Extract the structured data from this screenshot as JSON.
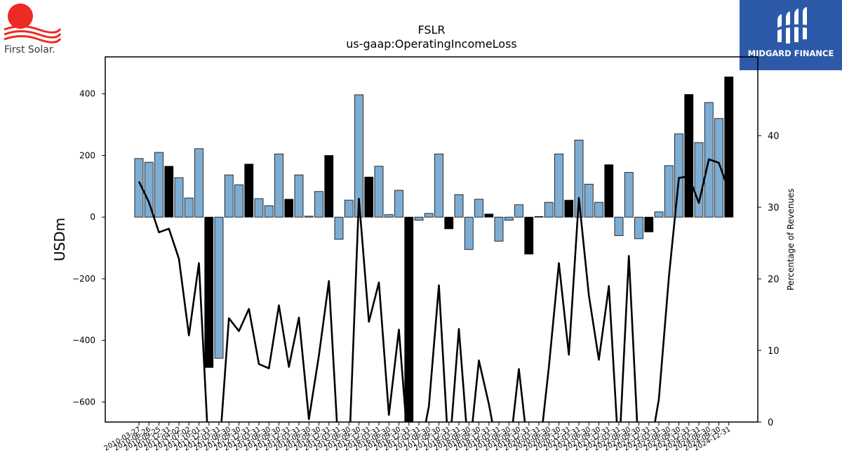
{
  "brand_left": {
    "text": "First Solar."
  },
  "brand_right": {
    "text": "MIDGARD FINANCE"
  },
  "chart_data": {
    "type": "bar",
    "title": "FSLR",
    "subtitle": "us-gaap:OperatingIncomeLoss",
    "ylabel": "USDm",
    "ylabel_right": "Percentage of Revenues",
    "ylim": [
      -665,
      520
    ],
    "ylim_right": [
      0,
      51
    ],
    "yticks": [
      -600,
      -400,
      -200,
      0,
      200,
      400
    ],
    "yticks_right": [
      0,
      10,
      20,
      30,
      40
    ],
    "colors": {
      "quarterly": "#7eadd4",
      "annual": "#000000",
      "line": "#000000"
    },
    "categories": [
      "2010-03-27",
      "2010-06-26",
      "2010-09-25",
      "2010-12-31",
      "2011-04-02",
      "2011-07-02",
      "2011-10-01",
      "2011-12-31",
      "2012-03-31",
      "2012-06-30",
      "2012-09-30",
      "2012-12-31",
      "2013-03-31",
      "2013-06-30",
      "2013-09-30",
      "2013-12-31",
      "2014-03-31",
      "2014-06-30",
      "2014-09-30",
      "2014-12-31",
      "2015-03-31",
      "2015-06-30",
      "2015-09-30",
      "2015-12-31",
      "2016-03-31",
      "2016-06-30",
      "2016-09-30",
      "2016-12-31",
      "2017-03-31",
      "2017-06-30",
      "2017-09-30",
      "2017-12-31",
      "2018-03-31",
      "2018-06-30",
      "2018-09-30",
      "2018-12-31",
      "2019-03-31",
      "2019-06-30",
      "2019-09-30",
      "2019-12-31",
      "2020-03-31",
      "2020-06-30",
      "2020-09-30",
      "2020-12-31",
      "2021-03-31",
      "2021-06-30",
      "2021-09-30",
      "2021-12-31",
      "2022-03-31",
      "2022-06-30",
      "2022-09-30",
      "2022-12-31",
      "2023-03-31",
      "2023-06-30",
      "2023-09-30",
      "2023-12-31",
      "2024-03-31",
      "2024-06-30",
      "2024-09-30",
      "2024-12-31"
    ],
    "xtick_labels_visible": [
      "2010-03-27",
      "2010-06-26",
      "2010-09-25",
      "2010-12-31",
      "2011-04-02",
      "2011-07-02",
      "2011-10-01",
      "2011-12-31",
      "2012-03-31",
      "2012-06-30",
      "2012-09-30",
      "2012-12-31",
      "2013-03-31",
      "2013-06-30",
      "2013-09-30",
      "2013-12-31",
      "2014-03-31",
      "2014-06-30",
      "2014-09-30",
      "2014-12-31",
      "2015-03-31",
      "2015-06-30",
      "2015-09-30",
      "2015-12-31",
      "2016-03-31",
      "2016-06-30",
      "2016-09-30",
      "2016-12-31",
      "2017-03-31",
      "2017-06-30",
      "2017-09-30",
      "2017-12-31",
      "2018-03-31",
      "2018-06-30",
      "2018-09-30",
      "2018-12-31",
      "2019-03-31",
      "2019-06-30",
      "2019-09-30",
      "2019-12-31",
      "2020-03-31",
      "2020-06-30",
      "2020-09-30",
      "2020-12-31",
      "2021-03-31",
      "2021-06-30",
      "2021-09-30",
      "2021-12-31",
      "2022-03-31",
      "2022-06-30",
      "2022-09-30",
      "2022-12-31",
      "2023-03-31",
      "2023-06-30",
      "2023-09-30",
      "2023-12-31",
      "2024-03-31",
      "2024-06-30",
      "2024-09-30",
      "2024-12-31"
    ],
    "series": [
      {
        "kind": "bar",
        "values": [
          190,
          178,
          210,
          165,
          128,
          62,
          222,
          -488,
          -458,
          137,
          105,
          172,
          60,
          37,
          205,
          58,
          137,
          3,
          83,
          200,
          -72,
          55,
          397,
          130,
          165,
          8,
          87,
          -680,
          -10,
          12,
          205,
          -38,
          73,
          -105,
          58,
          10,
          -78,
          -10,
          40,
          -120,
          2,
          48,
          205,
          55,
          250,
          107,
          48,
          170,
          -60,
          145,
          -70,
          -48,
          17,
          167,
          270,
          398,
          242,
          372,
          320,
          455
        ],
        "annual": [
          false,
          false,
          false,
          true,
          false,
          false,
          false,
          true,
          false,
          false,
          false,
          true,
          false,
          false,
          false,
          true,
          false,
          false,
          false,
          true,
          false,
          false,
          false,
          true,
          false,
          false,
          false,
          true,
          false,
          false,
          false,
          true,
          false,
          false,
          false,
          true,
          false,
          false,
          false,
          true,
          false,
          false,
          false,
          true,
          false,
          false,
          false,
          true,
          false,
          false,
          false,
          true,
          false,
          false,
          false,
          true,
          false,
          false,
          false,
          true
        ]
      },
      {
        "kind": "line",
        "axis": "right",
        "values": [
          33.6,
          30.7,
          26.5,
          27.0,
          22.8,
          12.1,
          22.2,
          -5,
          -5,
          14.5,
          12.7,
          15.8,
          8.1,
          7.5,
          16.3,
          7.7,
          14.6,
          0.4,
          9.3,
          19.7,
          -5,
          -5,
          31.2,
          14.0,
          19.5,
          1.0,
          12.9,
          -5,
          -5,
          2.2,
          19.1,
          -5,
          13.0,
          -5,
          8.6,
          2.5,
          -5,
          -5,
          7.4,
          -5,
          -5,
          7.7,
          22.2,
          9.4,
          31.3,
          17.7,
          8.7,
          19.0,
          -5,
          23.2,
          -5,
          -5,
          3.2,
          20.2,
          34.1,
          34.3,
          30.6,
          36.7,
          36.2,
          32.3
        ]
      }
    ]
  }
}
